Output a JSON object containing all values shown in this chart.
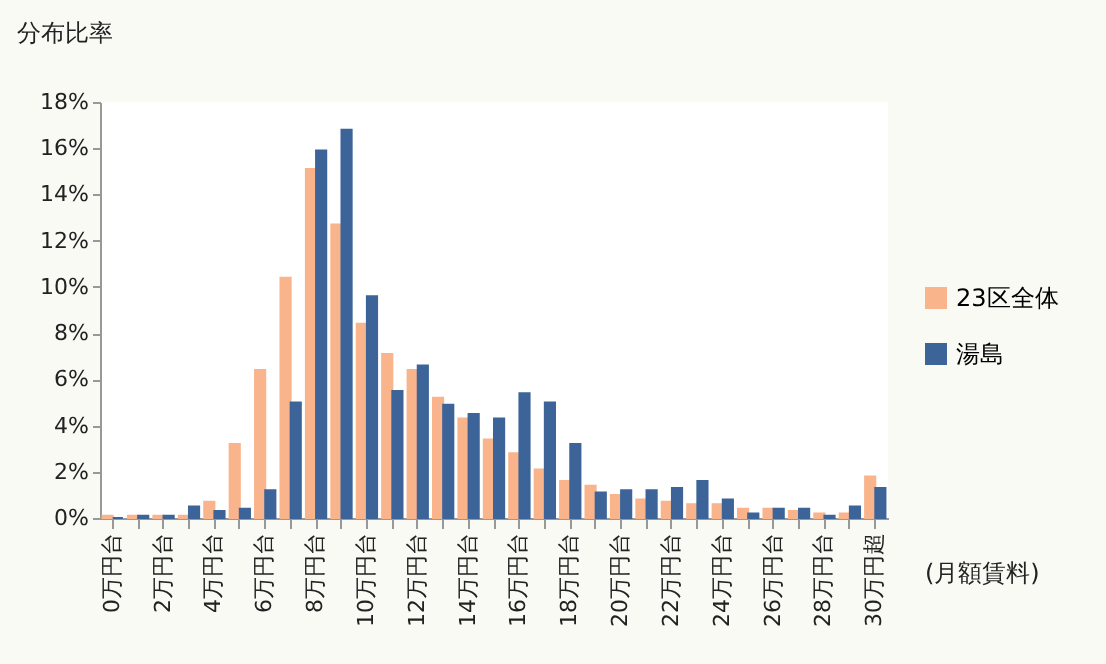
{
  "chart_data": {
    "type": "bar",
    "ylabel": "分布比率",
    "xlabel": "(月額賃料)",
    "categories": [
      "0万円台",
      null,
      "2万円台",
      null,
      "4万円台",
      null,
      "6万円台",
      null,
      "8万円台",
      null,
      "10万円台",
      null,
      "12万円台",
      null,
      "14万円台",
      null,
      "16万円台",
      null,
      "18万円台",
      null,
      "20万円台",
      null,
      "22万円台",
      null,
      "24万円台",
      null,
      "26万円台",
      null,
      "28万円台",
      null,
      "30万円超"
    ],
    "series": [
      {
        "name": "23区全体",
        "color": "#f9b48c",
        "values": [
          0.1,
          0.1,
          0.1,
          0.1,
          0.7,
          3.2,
          6.4,
          10.4,
          15.1,
          12.7,
          8.4,
          7.1,
          6.4,
          5.2,
          4.3,
          3.4,
          2.8,
          2.1,
          1.6,
          1.4,
          1.0,
          0.8,
          0.7,
          0.6,
          0.6,
          0.4,
          0.4,
          0.3,
          0.2,
          0.2,
          1.8
        ]
      },
      {
        "name": "湯島",
        "color": "#3d6499",
        "values": [
          0,
          0.1,
          0.1,
          0.5,
          0.3,
          0.4,
          1.2,
          5.0,
          15.9,
          16.8,
          9.6,
          5.5,
          6.6,
          4.9,
          4.5,
          4.3,
          5.4,
          5.0,
          3.2,
          1.1,
          1.2,
          1.2,
          1.3,
          1.6,
          0.8,
          0.2,
          0.4,
          0.4,
          0.1,
          0.5,
          1.3
        ]
      }
    ],
    "ylim": [
      0,
      18
    ],
    "yticks": [
      {
        "value": 0,
        "label": "0%"
      },
      {
        "value": 2,
        "label": "2%"
      },
      {
        "value": 4,
        "label": "4%"
      },
      {
        "value": 6,
        "label": "6%"
      },
      {
        "value": 8,
        "label": "8%"
      },
      {
        "value": 10,
        "label": "10%"
      },
      {
        "value": 12,
        "label": "12%"
      },
      {
        "value": 14,
        "label": "14%"
      },
      {
        "value": 16,
        "label": "16%"
      },
      {
        "value": 18,
        "label": "18%"
      }
    ],
    "grid": false,
    "legend": "right"
  }
}
